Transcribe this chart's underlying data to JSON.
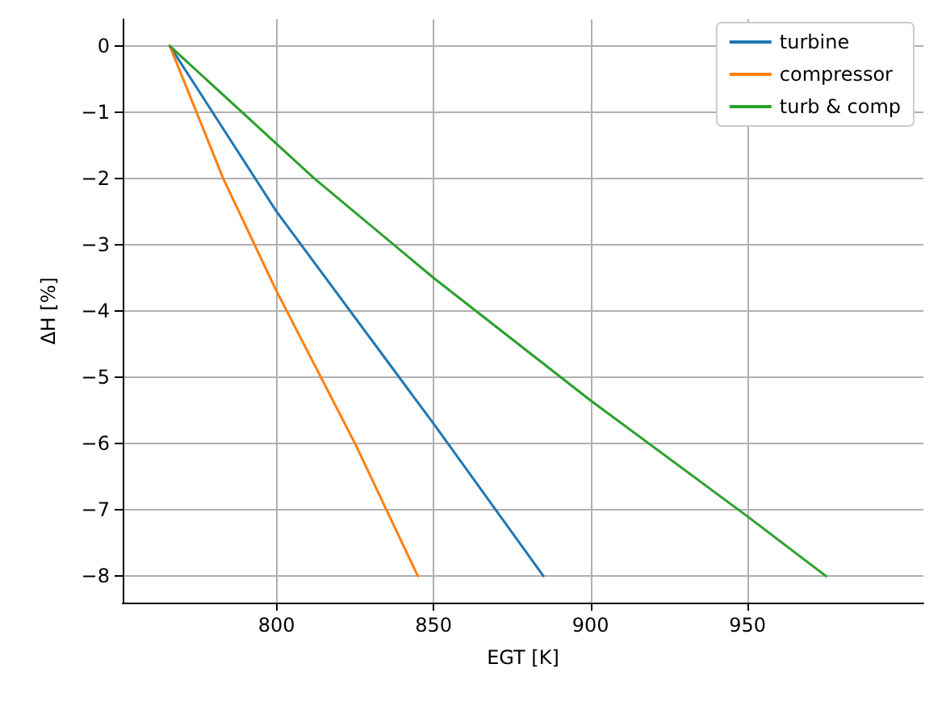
{
  "chart_data": {
    "type": "line",
    "xlabel": "EGT [K]",
    "ylabel": "ΔH [%]",
    "xlim": [
      751,
      1006
    ],
    "xticks": [
      800,
      850,
      900,
      950
    ],
    "ylim": [
      -8.4,
      0.4
    ],
    "yticks": [
      -8,
      -7,
      -6,
      -5,
      -4,
      -3,
      -2,
      -1,
      0
    ],
    "grid": true,
    "legend": "top right",
    "series": [
      {
        "name": "turbine",
        "color": "#1f77b4",
        "x": [
          766,
          800,
          850,
          885
        ],
        "values": [
          0,
          -2.5,
          -5.7,
          -8
        ]
      },
      {
        "name": "compressor",
        "color": "#ff7f0e",
        "x": [
          766,
          783,
          800,
          825,
          845
        ],
        "values": [
          0,
          -2,
          -3.7,
          -6,
          -8
        ]
      },
      {
        "name": "turb & comp",
        "color": "#2ca02c",
        "x": [
          766,
          812,
          850,
          900,
          950,
          975
        ],
        "values": [
          0,
          -2,
          -3.5,
          -5.35,
          -7.1,
          -8
        ]
      }
    ]
  }
}
